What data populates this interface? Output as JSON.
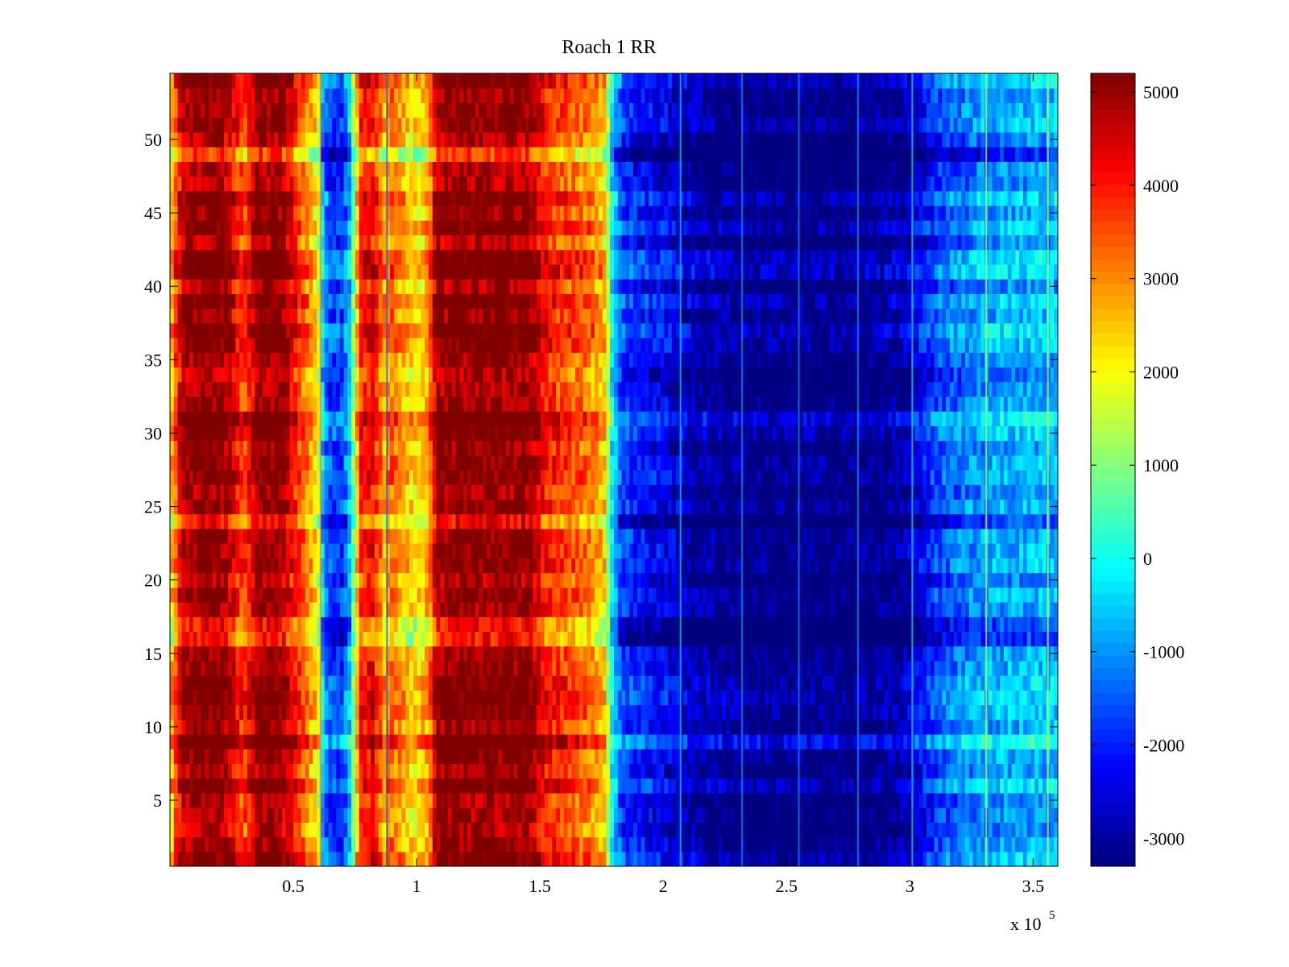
{
  "chart_data": {
    "type": "heatmap",
    "title": "Roach 1 RR",
    "xlabel": "",
    "ylabel": "",
    "x_multiplier": "x 10",
    "x_multiplier_exponent": "5",
    "xlim": [
      0,
      3.6
    ],
    "ylim": [
      0.5,
      54.5
    ],
    "xticks": [
      0.5,
      1,
      1.5,
      2,
      2.5,
      3,
      3.5
    ],
    "xtick_labels": [
      "0.5",
      "1",
      "1.5",
      "2",
      "2.5",
      "3",
      "3.5"
    ],
    "yticks": [
      5,
      10,
      15,
      20,
      25,
      30,
      35,
      40,
      45,
      50
    ],
    "ytick_labels": [
      "5",
      "10",
      "15",
      "20",
      "25",
      "30",
      "35",
      "40",
      "45",
      "50"
    ],
    "rows": 54,
    "colormap": "jet",
    "colorbar": {
      "range": [
        -3300,
        5200
      ],
      "ticks": [
        5000,
        4000,
        3000,
        2000,
        1000,
        0,
        -1000,
        -2000,
        -3000
      ],
      "tick_labels": [
        "5000",
        "4000",
        "3000",
        "2000",
        "1000",
        "0",
        "-1000",
        "-2000",
        "-3000"
      ],
      "placement": "right"
    },
    "column_profile": {
      "x": [
        0.0,
        0.02,
        0.05,
        0.1,
        0.2,
        0.25,
        0.3,
        0.32,
        0.36,
        0.45,
        0.5,
        0.55,
        0.6,
        0.62,
        0.65,
        0.7,
        0.73,
        0.77,
        0.82,
        0.87,
        0.9,
        0.95,
        1.0,
        1.05,
        1.08,
        1.15,
        1.3,
        1.45,
        1.52,
        1.6,
        1.7,
        1.76,
        1.79,
        1.83,
        1.9,
        2.0,
        2.1,
        2.3,
        2.5,
        2.8,
        2.95,
        3.0,
        3.05,
        3.12,
        3.3,
        3.6
      ],
      "values": [
        2000,
        3500,
        4800,
        5200,
        5200,
        4600,
        3600,
        4200,
        5200,
        5200,
        4200,
        3200,
        2200,
        -800,
        -1700,
        -1700,
        -500,
        3800,
        4300,
        2800,
        3400,
        2700,
        2200,
        2900,
        5000,
        5200,
        5200,
        5200,
        4100,
        3700,
        3200,
        2600,
        0,
        -1600,
        -2000,
        -2300,
        -2800,
        -3200,
        -3300,
        -3300,
        -3000,
        -2700,
        -2200,
        -1500,
        -800,
        -600
      ]
    },
    "row_offsets": {
      "rows": [
        5,
        9,
        11,
        16,
        17,
        20,
        24,
        27,
        29,
        31,
        34,
        36,
        38,
        41,
        44,
        46,
        49
      ],
      "offsets": [
        -700,
        500,
        600,
        -800,
        -600,
        -400,
        -900,
        500,
        -300,
        400,
        -400,
        300,
        -300,
        300,
        300,
        300,
        -1400
      ]
    },
    "vertical_streaks_x": [
      0.61,
      0.88,
      2.07,
      2.32,
      2.55,
      2.79,
      3.01,
      3.31,
      3.56
    ]
  }
}
